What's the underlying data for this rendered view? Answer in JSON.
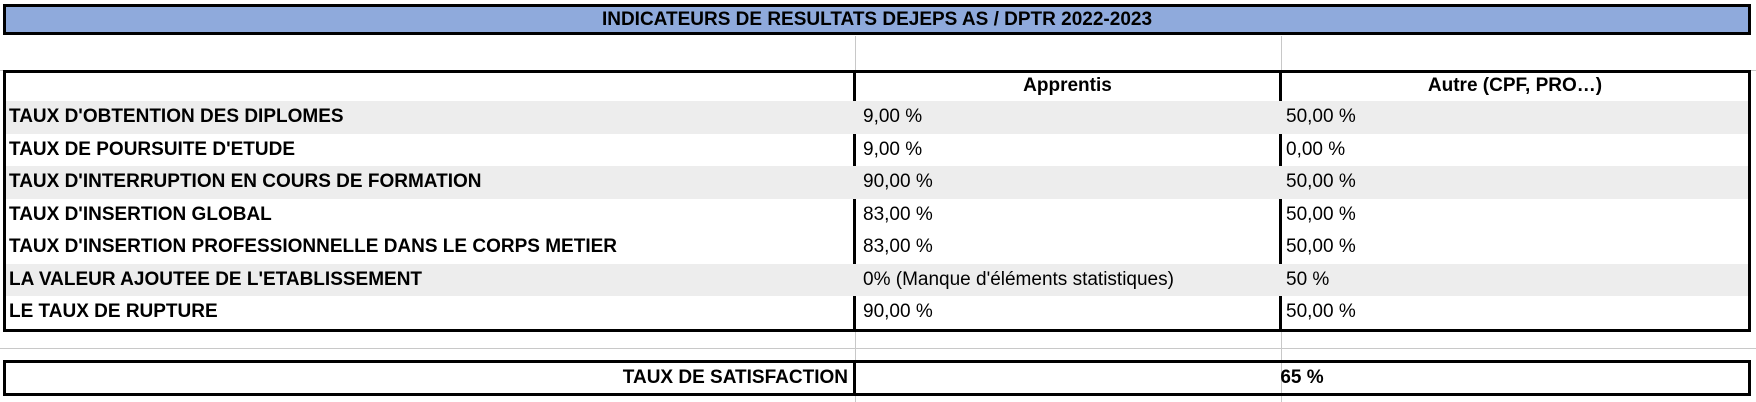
{
  "sheet": {
    "title": "INDICATEURS DE RESULTATS DEJEPS  AS / DPTR 2022-2023",
    "columns": {
      "apprentis": "Apprentis",
      "autre": "Autre (CPF, PRO…)"
    },
    "rows": [
      {
        "label": "TAUX D'OBTENTION DES DIPLOMES",
        "apprentis": "9,00 %",
        "autre": "50,00 %"
      },
      {
        "label": "TAUX DE POURSUITE D'ETUDE",
        "apprentis": "9,00 %",
        "autre": "0,00 %"
      },
      {
        "label": "TAUX D'INTERRUPTION EN COURS DE FORMATION",
        "apprentis": "90,00 %",
        "autre": "50,00 %"
      },
      {
        "label": "TAUX D'INSERTION GLOBAL",
        "apprentis": "83,00 %",
        "autre": "50,00 %"
      },
      {
        "label": "TAUX D'INSERTION PROFESSIONNELLE DANS LE CORPS METIER",
        "apprentis": "83,00 %",
        "autre": "50,00 %"
      },
      {
        "label": "LA VALEUR AJOUTEE DE L'ETABLISSEMENT",
        "apprentis": "0% (Manque d'éléments statistiques)",
        "autre": "50 %"
      },
      {
        "label": "LE TAUX DE RUPTURE",
        "apprentis": "90,00 %",
        "autre": "50,00 %"
      }
    ],
    "satisfaction": {
      "label": "TAUX DE SATISFACTION",
      "value": "65 %"
    }
  }
}
